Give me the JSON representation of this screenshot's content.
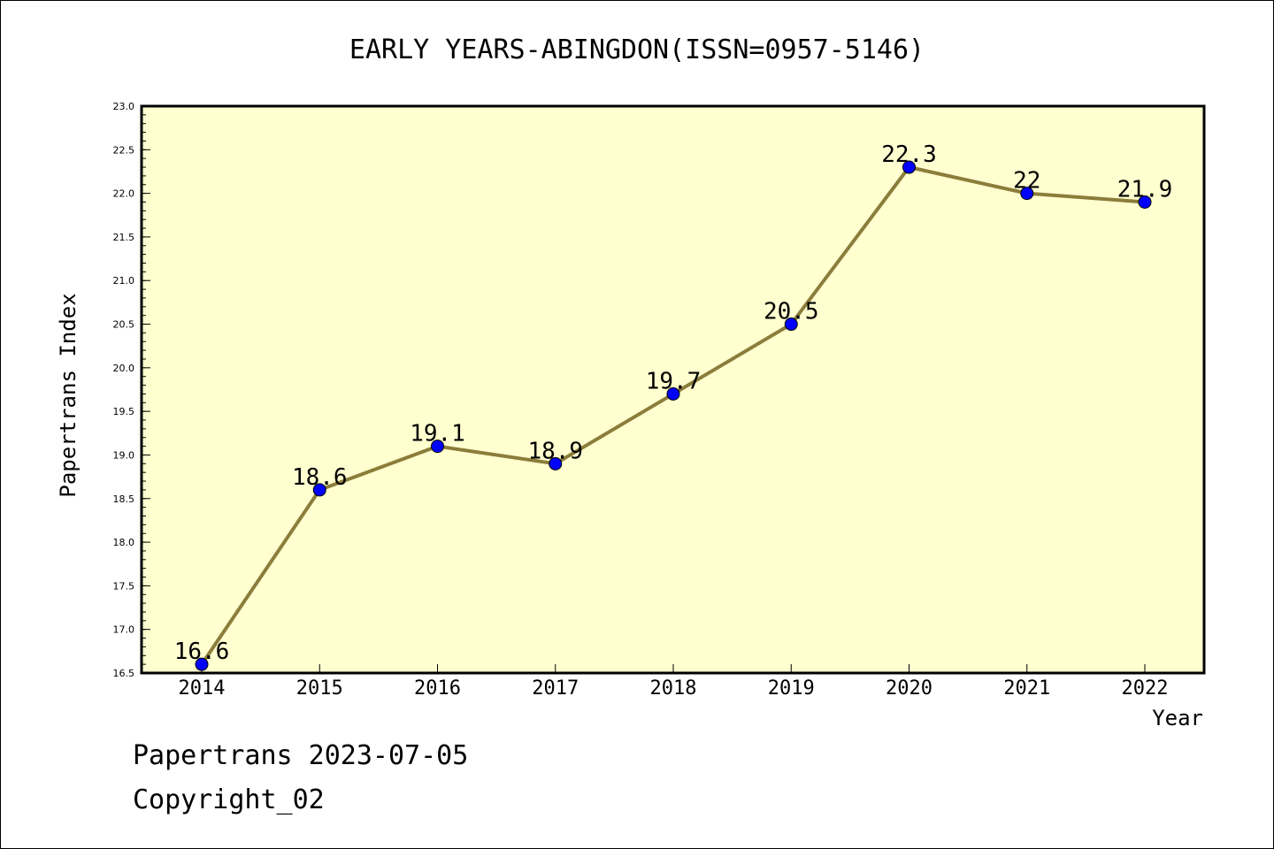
{
  "chart_data": {
    "type": "line",
    "title": "EARLY YEARS-ABINGDON(ISSN=0957-5146)",
    "xlabel": "Year",
    "ylabel": "Papertrans Index",
    "categories": [
      "2014",
      "2015",
      "2016",
      "2017",
      "2018",
      "2019",
      "2020",
      "2021",
      "2022"
    ],
    "values": [
      16.6,
      18.6,
      19.1,
      18.9,
      19.7,
      20.5,
      22.3,
      22.0,
      21.9
    ],
    "data_labels": [
      "16.6",
      "18.6",
      "19.1",
      "18.9",
      "19.7",
      "20.5",
      "22.3",
      "22",
      "21.9"
    ],
    "ylim": [
      16.5,
      23.0
    ],
    "yticks": [
      "16.5",
      "17.0",
      "17.5",
      "18.0",
      "18.5",
      "19.0",
      "19.5",
      "20.0",
      "20.5",
      "21.0",
      "21.5",
      "22.0",
      "22.5",
      "23.0"
    ],
    "grid": false,
    "colors": {
      "plot_background": "#ffffd0",
      "line": "#8b7d3a",
      "marker": "#0000ff"
    }
  },
  "footer": {
    "line1": "Papertrans 2023-07-05",
    "line2": "Copyright_02"
  }
}
